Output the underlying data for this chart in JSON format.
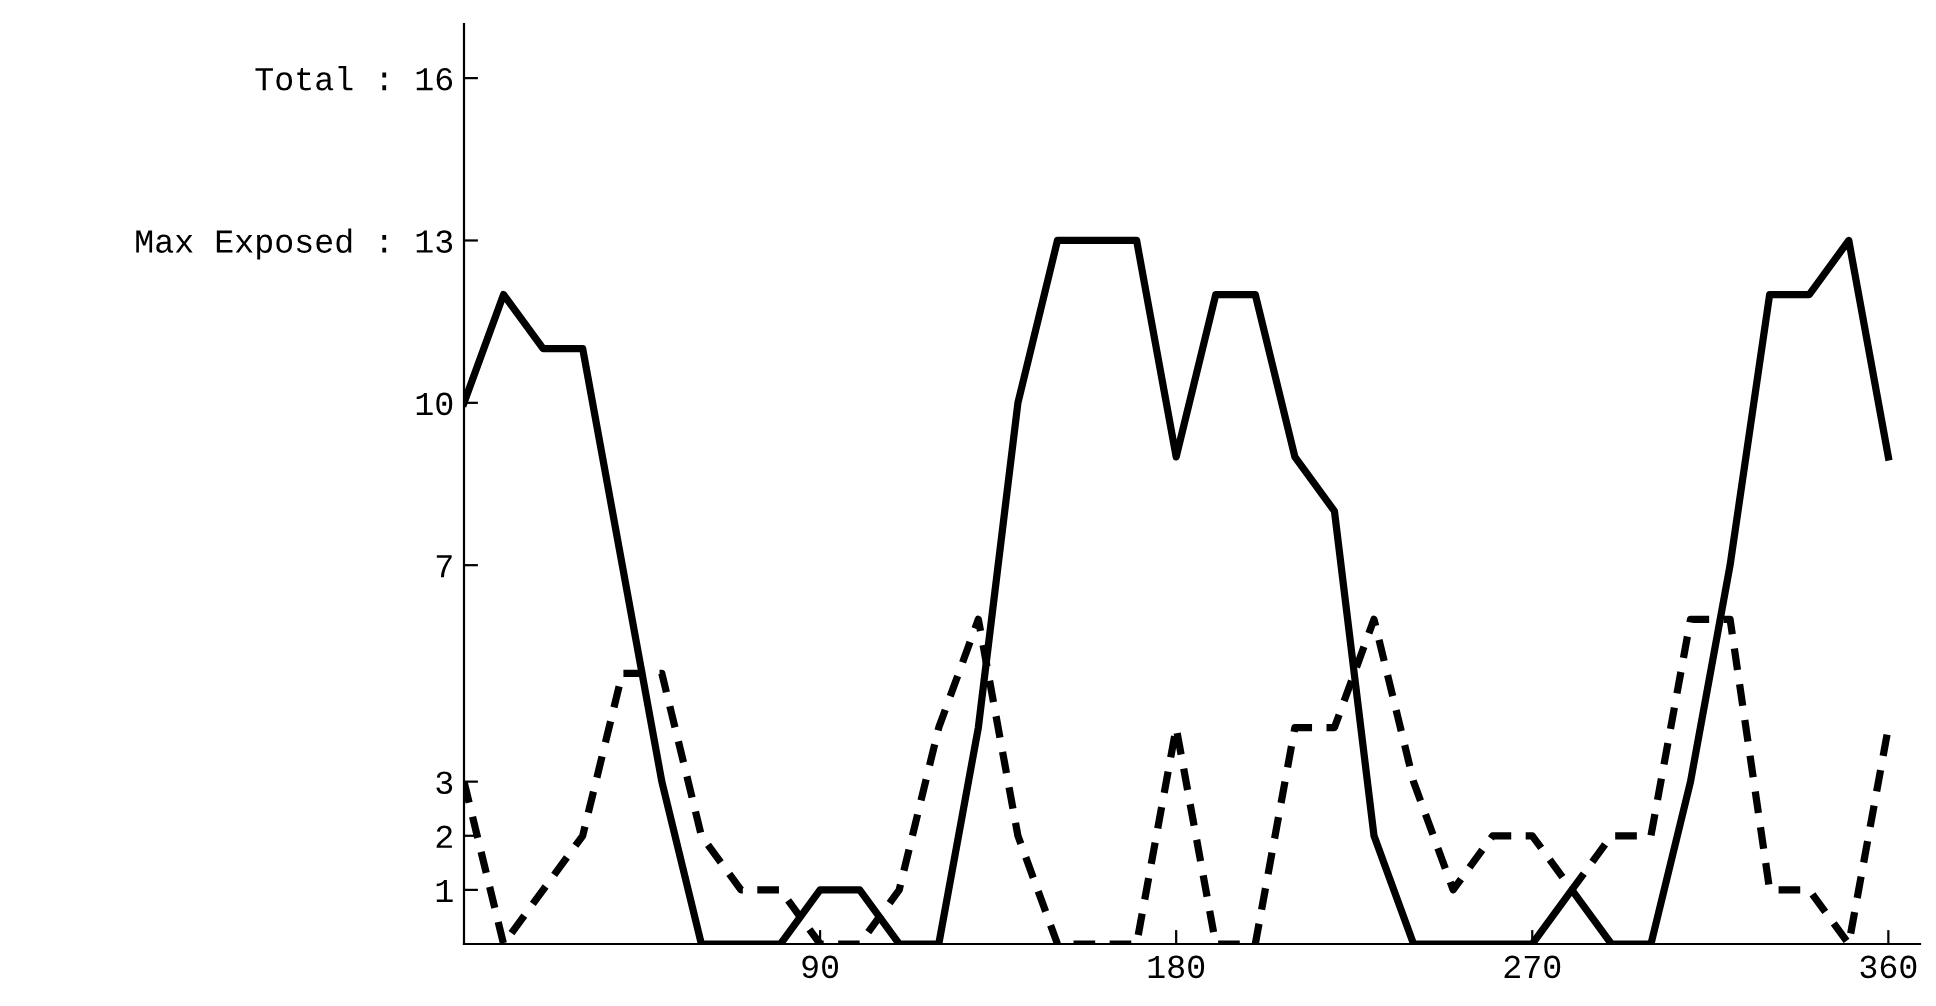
{
  "chart_data": {
    "type": "line",
    "x": [
      0,
      10,
      20,
      30,
      40,
      50,
      60,
      70,
      80,
      90,
      100,
      110,
      120,
      130,
      140,
      150,
      160,
      170,
      180,
      190,
      200,
      210,
      220,
      230,
      240,
      250,
      260,
      270,
      280,
      290,
      300,
      310,
      320,
      330,
      340,
      350,
      360
    ],
    "series": [
      {
        "color": "#000000",
        "line_style": "solid",
        "values": [
          10,
          12,
          11,
          11,
          7,
          3,
          0,
          0,
          0,
          1,
          1,
          0,
          0,
          4,
          10,
          13,
          13,
          13,
          9,
          12,
          12,
          9,
          8,
          2,
          0,
          0,
          0,
          0,
          1,
          0,
          0,
          3,
          7,
          12,
          12,
          13,
          9
        ]
      },
      {
        "color": "#000000",
        "line_style": "dashed",
        "values": [
          3,
          0,
          1,
          2,
          5,
          5,
          2,
          1,
          1,
          0,
          0,
          1,
          4,
          6,
          2,
          0,
          0,
          0,
          4,
          0,
          0,
          4,
          4,
          6,
          3,
          1,
          2,
          2,
          1,
          2,
          2,
          6,
          6,
          1,
          1,
          0,
          4
        ]
      }
    ],
    "xlim": [
      0,
      368
    ],
    "xticks": [
      90,
      180,
      270,
      360
    ],
    "ylim": [
      0,
      17
    ],
    "yticks": [
      1,
      2,
      3,
      7,
      10,
      {
        "value": 13,
        "label": "Max Exposed : 13"
      },
      {
        "value": 16,
        "label": "Total : 16"
      }
    ],
    "grid": false,
    "legend": false,
    "marker": "none"
  }
}
